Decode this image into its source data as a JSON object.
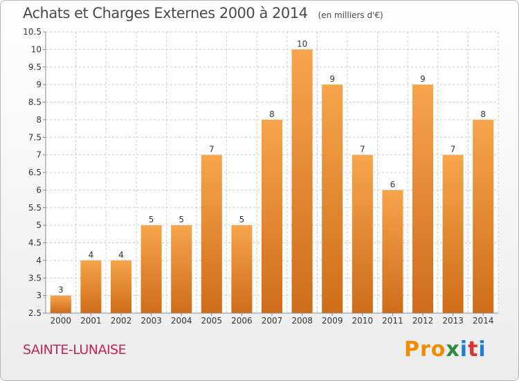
{
  "header": {
    "title": "Achats et Charges Externes 2000 à 2014",
    "unit": "(en milliers d'€)"
  },
  "footer": {
    "place": "SAINTE-LUNAISE",
    "logo": {
      "p1": "Pro",
      "p2": "x",
      "p3": "i",
      "p4": "t",
      "p5": "i"
    }
  },
  "colors": {
    "bar_top": "#f6a54c",
    "bar_bottom": "#cf6c19",
    "grid": "#cccccc",
    "axis_text": "#333333"
  },
  "chart_data": {
    "type": "bar",
    "title": "Achats et Charges Externes 2000 à 2014",
    "categories": [
      "2000",
      "2001",
      "2002",
      "2003",
      "2004",
      "2005",
      "2006",
      "2007",
      "2008",
      "2009",
      "2010",
      "2011",
      "2012",
      "2013",
      "2014"
    ],
    "values": [
      3,
      4,
      4,
      5,
      5,
      7,
      5,
      8,
      10,
      9,
      7,
      6,
      9,
      7,
      8
    ],
    "value_labels": [
      "3",
      "4",
      "4",
      "5",
      "5",
      "7",
      "5",
      "8",
      "10",
      "9",
      "7",
      "6",
      "9",
      "7",
      "8"
    ],
    "ylim": [
      2.5,
      10.5
    ],
    "yticks": [
      "2.5",
      "3",
      "3.5",
      "4",
      "4.5",
      "5",
      "5.5",
      "6",
      "6.5",
      "7",
      "7.5",
      "8",
      "8.5",
      "9",
      "9.5",
      "10",
      "10.5"
    ],
    "grid": true,
    "legend": "none"
  }
}
